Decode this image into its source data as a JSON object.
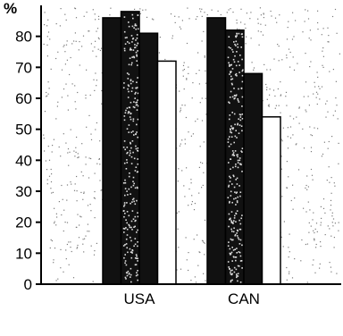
{
  "chart_data": {
    "type": "bar",
    "title": "",
    "xlabel": "",
    "ylabel": "",
    "y_unit_label": "%",
    "ylim": [
      0,
      90
    ],
    "yticks": [
      0,
      10,
      20,
      30,
      40,
      50,
      60,
      70,
      80
    ],
    "categories": [
      "USA",
      "CAN"
    ],
    "series": [
      {
        "values": [
          86,
          86
        ],
        "fill": "#111111"
      },
      {
        "values": [
          88,
          82
        ],
        "fill": "#111111",
        "speckled": true
      },
      {
        "values": [
          81,
          68
        ],
        "fill": "#111111"
      },
      {
        "values": [
          72,
          54
        ],
        "fill": "#ffffff"
      }
    ],
    "grid": false,
    "legend": "none",
    "colors": {
      "axis": "#000000",
      "bar_dark": "#111111",
      "bar_light": "#ffffff",
      "stipple": "#7a7a7a"
    }
  }
}
